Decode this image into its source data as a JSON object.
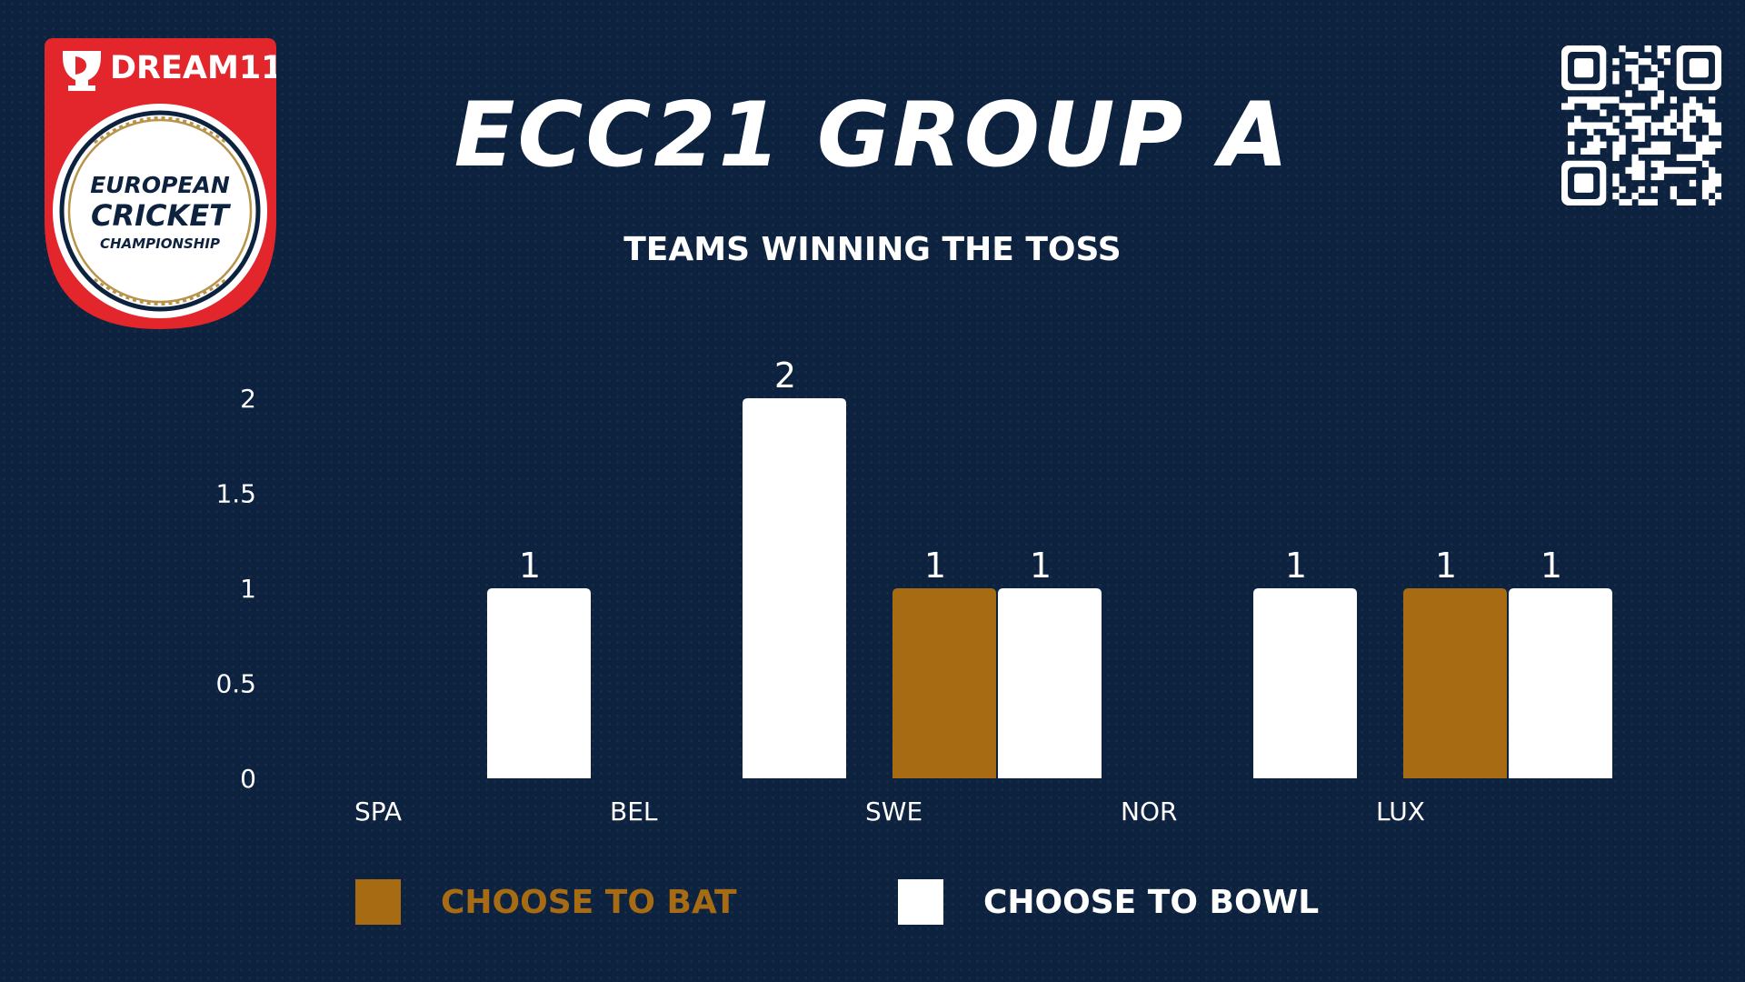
{
  "logo": {
    "brand": "DREAM11",
    "line1": "EUROPEAN",
    "line2": "CRICKET",
    "line3": "CHAMPIONSHIP"
  },
  "header": {
    "title": "ECC21 GROUP A",
    "subtitle": "TEAMS WINNING THE TOSS"
  },
  "legend": {
    "bat_label": "CHOOSE TO BAT",
    "bowl_label": "CHOOSE TO BOWL"
  },
  "colors": {
    "background": "#0d223f",
    "bat": "#a76c13",
    "bowl": "#ffffff",
    "logo_red": "#e2262b",
    "logo_gold": "#b8934a"
  },
  "icons": [
    "dream11-logo-icon",
    "qr-code-icon"
  ],
  "chart_data": {
    "type": "bar",
    "title": "TEAMS WINNING THE TOSS",
    "categories": [
      "SPA",
      "BEL",
      "SWE",
      "NOR",
      "LUX"
    ],
    "series": [
      {
        "name": "CHOOSE TO BAT",
        "values": [
          0,
          0,
          1,
          0,
          1
        ]
      },
      {
        "name": "CHOOSE TO BOWL",
        "values": [
          1,
          2,
          1,
          1,
          1
        ]
      }
    ],
    "yticks": [
      "0",
      "0.5",
      "1",
      "1.5",
      "2"
    ],
    "ylim": [
      0,
      2
    ],
    "grid": false,
    "legend_position": "bottom"
  }
}
